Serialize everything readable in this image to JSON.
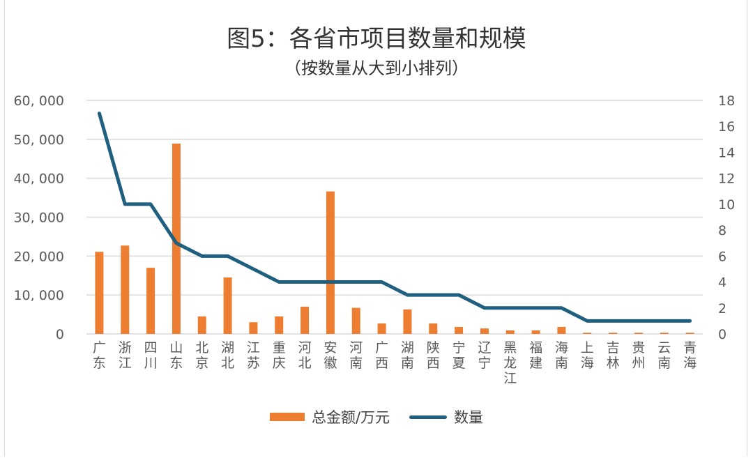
{
  "title": "图5：各省市项目数量和规模",
  "subtitle": "（按数量从大到小排列）",
  "legend": {
    "bar_label": "总金额/万元",
    "line_label": "数量"
  },
  "colors": {
    "bar": "#ED7D31",
    "line": "#1F5F7F",
    "grid": "#D9D9D9"
  },
  "chart_data": {
    "type": "bar+line",
    "title": "图5：各省市项目数量和规模",
    "subtitle": "（按数量从大到小排列）",
    "categories": [
      "广东",
      "浙江",
      "四川",
      "山东",
      "北京",
      "湖北",
      "江苏",
      "重庆",
      "河北",
      "安徽",
      "河南",
      "广西",
      "湖南",
      "陕西",
      "宁夏",
      "辽宁",
      "黑龙江",
      "福建",
      "海南",
      "上海",
      "吉林",
      "贵州",
      "云南",
      "青海"
    ],
    "series": [
      {
        "name": "总金额/万元",
        "type": "bar",
        "axis": "left",
        "values": [
          21100,
          22700,
          17000,
          48900,
          4500,
          14500,
          3000,
          4500,
          7000,
          36600,
          6700,
          2700,
          6300,
          2700,
          1800,
          1400,
          900,
          900,
          1800,
          300,
          300,
          300,
          300,
          300
        ]
      },
      {
        "name": "数量",
        "type": "line",
        "axis": "right",
        "values": [
          17,
          10,
          10,
          7,
          6,
          6,
          5,
          4,
          4,
          4,
          4,
          4,
          3,
          3,
          3,
          2,
          2,
          2,
          2,
          1,
          1,
          1,
          1,
          1
        ]
      }
    ],
    "left_axis": {
      "ylim": [
        0,
        60000
      ],
      "ticks": [
        "0",
        "10, 000",
        "20, 000",
        "30, 000",
        "40, 000",
        "50, 000",
        "60, 000"
      ]
    },
    "right_axis": {
      "ylim": [
        0,
        18
      ],
      "ticks": [
        "0",
        "2",
        "4",
        "6",
        "8",
        "10",
        "12",
        "14",
        "16",
        "18"
      ]
    },
    "grid": true,
    "legend_position": "bottom"
  }
}
